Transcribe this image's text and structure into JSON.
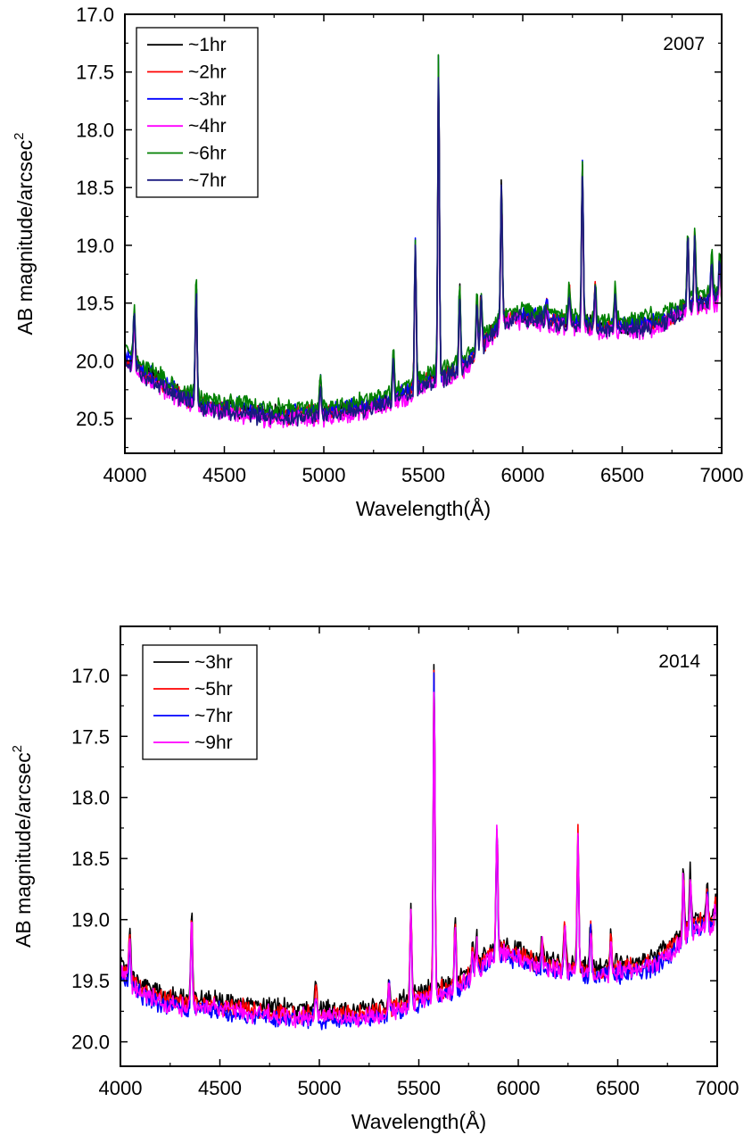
{
  "chart_data": [
    {
      "type": "line",
      "annotation": "2007",
      "xlabel": "Wavelength(Å)",
      "ylabel_main": "AB  magnitude/arcsec",
      "ylabel_sup": "2",
      "xlim": [
        4000,
        7000
      ],
      "ylim": [
        17.0,
        20.8
      ],
      "y_inverted": true,
      "x_ticks": [
        4000,
        4500,
        5000,
        5500,
        6000,
        6500,
        7000
      ],
      "x_tick_labels": [
        "4000",
        "4500",
        "5000",
        "5500",
        "6000",
        "6500",
        "7000"
      ],
      "y_ticks": [
        17.0,
        17.5,
        18.0,
        18.5,
        19.0,
        19.5,
        20.0,
        20.5
      ],
      "y_tick_labels": [
        "17.0",
        "17.5",
        "18.0",
        "18.5",
        "19.0",
        "19.5",
        "20.0",
        "20.5"
      ],
      "legend_position": "top-left",
      "continuum": {
        "x": [
          4000,
          4100,
          4200,
          4300,
          4400,
          4500,
          4600,
          4700,
          4800,
          4900,
          5000,
          5100,
          5200,
          5300,
          5400,
          5500,
          5600,
          5700,
          5800,
          5900,
          6000,
          6100,
          6200,
          6300,
          6400,
          6500,
          6600,
          6700,
          6800,
          6900,
          7000
        ],
        "y": [
          19.95,
          20.1,
          20.2,
          20.3,
          20.38,
          20.4,
          20.42,
          20.45,
          20.46,
          20.45,
          20.44,
          20.42,
          20.4,
          20.35,
          20.28,
          20.18,
          20.12,
          20.05,
          19.85,
          19.62,
          19.6,
          19.62,
          19.65,
          19.68,
          19.7,
          19.7,
          19.68,
          19.65,
          19.55,
          19.48,
          19.45
        ]
      },
      "lines": [
        {
          "x": 4047,
          "y": 19.55
        },
        {
          "x": 4358,
          "y": 19.32
        },
        {
          "x": 4983,
          "y": 20.15
        },
        {
          "x": 5350,
          "y": 19.95
        },
        {
          "x": 5460,
          "y": 18.97
        },
        {
          "x": 5577,
          "y": 17.43
        },
        {
          "x": 5683,
          "y": 19.38
        },
        {
          "x": 5770,
          "y": 19.45
        },
        {
          "x": 5791,
          "y": 19.4
        },
        {
          "x": 5893,
          "y": 18.5
        },
        {
          "x": 6120,
          "y": 19.5
        },
        {
          "x": 6234,
          "y": 19.37
        },
        {
          "x": 6300,
          "y": 18.3
        },
        {
          "x": 6364,
          "y": 19.35
        },
        {
          "x": 6465,
          "y": 19.4
        },
        {
          "x": 6830,
          "y": 18.9
        },
        {
          "x": 6865,
          "y": 18.9
        },
        {
          "x": 6950,
          "y": 19.1
        },
        {
          "x": 6990,
          "y": 19.12
        }
      ],
      "series": [
        {
          "name": "~1hr",
          "color": "#000000",
          "offset": 0.0
        },
        {
          "name": "~2hr",
          "color": "#ff0000",
          "offset": 0.01
        },
        {
          "name": "~3hr",
          "color": "#0000ff",
          "offset": -0.01
        },
        {
          "name": "~4hr",
          "color": "#ff00ff",
          "offset": 0.05
        },
        {
          "name": "~6hr",
          "color": "#008000",
          "offset": -0.05
        },
        {
          "name": "~7hr",
          "color": "#1a1a80",
          "offset": 0.03
        }
      ]
    },
    {
      "type": "line",
      "annotation": "2014",
      "xlabel": "Wavelength(Å)",
      "ylabel_main": "AB magnitude/arcsec",
      "ylabel_sup": "2",
      "xlim": [
        4000,
        7000
      ],
      "ylim": [
        16.6,
        20.2
      ],
      "y_inverted": true,
      "x_ticks": [
        4000,
        4500,
        5000,
        5500,
        6000,
        6500,
        7000
      ],
      "x_tick_labels": [
        "4000",
        "4500",
        "5000",
        "5500",
        "6000",
        "6500",
        "7000"
      ],
      "y_ticks": [
        17.0,
        17.5,
        18.0,
        18.5,
        19.0,
        19.5,
        20.0
      ],
      "y_tick_labels": [
        "17.0",
        "17.5",
        "18.0",
        "18.5",
        "19.0",
        "19.5",
        "20.0"
      ],
      "legend_position": "top-left",
      "continuum": {
        "x": [
          4000,
          4100,
          4200,
          4300,
          4400,
          4500,
          4600,
          4700,
          4800,
          4900,
          5000,
          5100,
          5200,
          5300,
          5400,
          5500,
          5600,
          5700,
          5800,
          5900,
          6000,
          6100,
          6200,
          6300,
          6400,
          6500,
          6600,
          6700,
          6800,
          6900,
          7000
        ],
        "y": [
          19.42,
          19.58,
          19.66,
          19.7,
          19.7,
          19.72,
          19.74,
          19.76,
          19.78,
          19.79,
          19.79,
          19.8,
          19.8,
          19.78,
          19.72,
          19.65,
          19.6,
          19.55,
          19.4,
          19.25,
          19.3,
          19.38,
          19.4,
          19.42,
          19.45,
          19.42,
          19.4,
          19.35,
          19.2,
          19.05,
          19.05
        ]
      },
      "lines": [
        {
          "x": 4047,
          "y": 19.15
        },
        {
          "x": 4358,
          "y": 19.0
        },
        {
          "x": 4983,
          "y": 19.55
        },
        {
          "x": 5350,
          "y": 19.5
        },
        {
          "x": 5460,
          "y": 18.9
        },
        {
          "x": 5577,
          "y": 16.93
        },
        {
          "x": 5683,
          "y": 19.02
        },
        {
          "x": 5770,
          "y": 19.25
        },
        {
          "x": 5791,
          "y": 19.2
        },
        {
          "x": 5893,
          "y": 18.22
        },
        {
          "x": 6120,
          "y": 19.2
        },
        {
          "x": 6234,
          "y": 19.02
        },
        {
          "x": 6300,
          "y": 18.33
        },
        {
          "x": 6364,
          "y": 19.05
        },
        {
          "x": 6465,
          "y": 19.1
        },
        {
          "x": 6830,
          "y": 18.62
        },
        {
          "x": 6865,
          "y": 18.65
        },
        {
          "x": 6950,
          "y": 18.75
        },
        {
          "x": 6990,
          "y": 18.85
        }
      ],
      "series": [
        {
          "name": "~3hr",
          "color": "#000000",
          "offset": -0.06
        },
        {
          "name": "~5hr",
          "color": "#ff0000",
          "offset": -0.02
        },
        {
          "name": "~7hr",
          "color": "#0000ff",
          "offset": 0.03
        },
        {
          "name": "~9hr",
          "color": "#ff00ff",
          "offset": 0.01
        }
      ]
    }
  ]
}
